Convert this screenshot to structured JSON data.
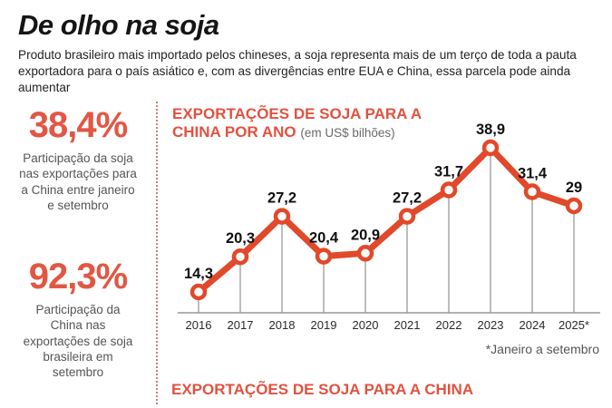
{
  "page": {
    "title": "De olho na soja",
    "subtitle_line1": "Produto brasileiro mais importado pelos chineses, a soja representa mais de um terço de toda a pauta",
    "subtitle_line2": "exportadora para o país asiático e, com as divergências entre EUA e China, essa parcela pode ainda aumentar"
  },
  "sidebar": {
    "stats": [
      {
        "value": "38,4%",
        "description": "Participação da soja nas exportações para a China entre janeiro e setembro"
      },
      {
        "value": "92,3%",
        "description": "Participação da China nas exportações de soja brasileira em setembro"
      }
    ]
  },
  "chart": {
    "title_main": "EXPORTAÇÕES DE SOJA PARA A CHINA POR ANO ",
    "title_unit": "(em US$ bilhões)",
    "footnote": "*Janeiro a setembro"
  },
  "bottom_section": {
    "title": "EXPORTAÇÕES DE SOJA PARA A CHINA"
  },
  "colors": {
    "accent_red": "#e1492b",
    "heading_red": "#e25240",
    "stat_red": "#e25743",
    "text_dark": "#1c1c1c",
    "text_gray": "#555555",
    "stem_gray": "#999999"
  },
  "chart_data": {
    "type": "line",
    "title": "Exportações de soja para a China por ano",
    "unit_label": "em US$ bilhões",
    "categories": [
      "2016",
      "2017",
      "2018",
      "2019",
      "2020",
      "2021",
      "2022",
      "2023",
      "2024",
      "2025*"
    ],
    "values": [
      14.3,
      20.3,
      27.2,
      20.4,
      20.9,
      27.2,
      31.7,
      38.9,
      31.4,
      29
    ],
    "value_labels": [
      "14,3",
      "20,3",
      "27,2",
      "20,4",
      "20,9",
      "27,2",
      "31,7",
      "38,9",
      "31,4",
      "29"
    ],
    "xlabel": "",
    "ylabel": "US$ bilhões",
    "footnote": "*Janeiro a setembro",
    "marker": "open-circle",
    "grid": false,
    "legend_position": "none"
  }
}
